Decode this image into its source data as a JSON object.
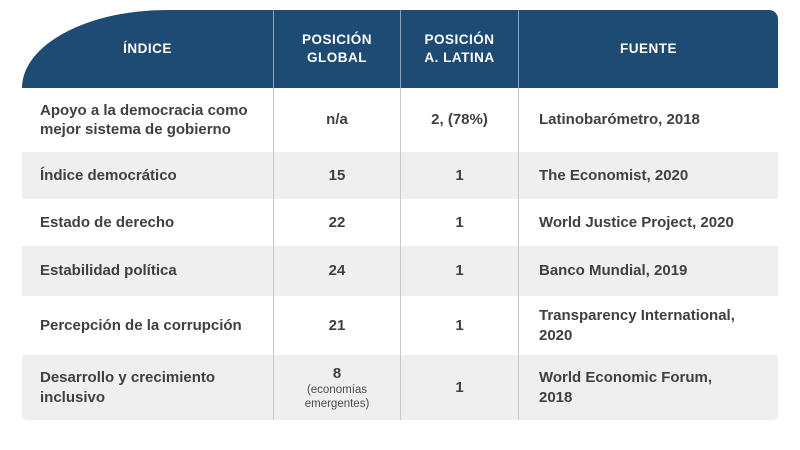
{
  "colors": {
    "header_bg": "#1e4b73",
    "header_text": "#ffffff",
    "row_alt_bg": "#f0efef",
    "row_bg": "#ffffff",
    "body_text": "#404040",
    "separator": "#c8c8c8"
  },
  "table": {
    "header": {
      "indice": "ÍNDICE",
      "posicion_global": "POSICIÓN\nGLOBAL",
      "posicion_latina": "POSICIÓN\nA. LATINA",
      "fuente": "FUENTE"
    },
    "rows": [
      {
        "indice": "Apoyo a la democracia como\nmejor sistema de gobierno",
        "global": "n/a",
        "global_note": "",
        "latina": "2, (78%)",
        "fuente": "Latinobarómetro, 2018"
      },
      {
        "indice": "Índice democrático",
        "global": "15",
        "global_note": "",
        "latina": "1",
        "fuente": "The Economist, 2020"
      },
      {
        "indice": "Estado de derecho",
        "global": "22",
        "global_note": "",
        "latina": "1",
        "fuente": "World Justice Project, 2020"
      },
      {
        "indice": "Estabilidad política",
        "global": "24",
        "global_note": "",
        "latina": "1",
        "fuente": "Banco Mundial, 2019"
      },
      {
        "indice": "Percepción de la corrupción",
        "global": "21",
        "global_note": "",
        "latina": "1",
        "fuente": "Transparency International,\n2020"
      },
      {
        "indice": "Desarrollo y crecimiento\ninclusivo",
        "global": "8",
        "global_note": "(economías\nemergentes)",
        "latina": "1",
        "fuente": "World Economic Forum,\n2018"
      }
    ]
  },
  "chart_data": {
    "type": "table",
    "columns": [
      "ÍNDICE",
      "POSICIÓN GLOBAL",
      "POSICIÓN A. LATINA",
      "FUENTE"
    ],
    "rows": [
      [
        "Apoyo a la democracia como mejor sistema de gobierno",
        "n/a",
        "2, (78%)",
        "Latinobarómetro, 2018"
      ],
      [
        "Índice democrático",
        "15",
        "1",
        "The Economist, 2020"
      ],
      [
        "Estado de derecho",
        "22",
        "1",
        "World Justice Project, 2020"
      ],
      [
        "Estabilidad política",
        "24",
        "1",
        "Banco Mundial, 2019"
      ],
      [
        "Percepción de la corrupción",
        "21",
        "1",
        "Transparency International, 2020"
      ],
      [
        "Desarrollo y crecimiento inclusivo",
        "8 (economías emergentes)",
        "1",
        "World Economic Forum, 2018"
      ]
    ],
    "layout_hints": {
      "header_style": "navy background, white bold uppercase text, large swoosh curve top-left",
      "row_striping": "white / light-gray alternating",
      "column_alignment": [
        "left",
        "center",
        "center",
        "left"
      ]
    }
  }
}
